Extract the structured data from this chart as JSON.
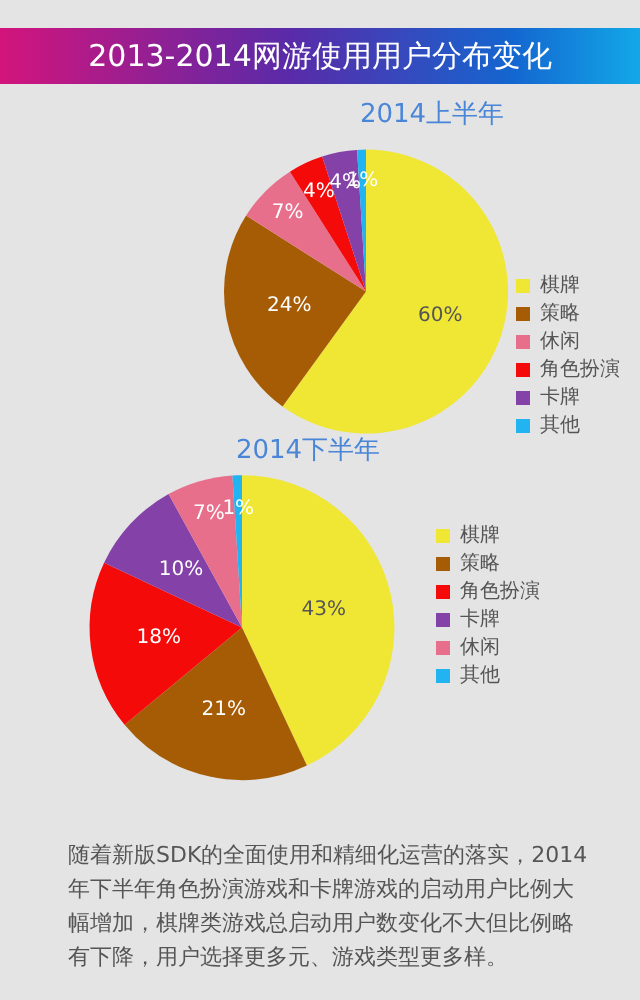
{
  "chart_data": [
    {
      "type": "other",
      "title": "2013-2014网游使用用户分布变化"
    },
    {
      "type": "pie",
      "title": "2014上半年",
      "categories": [
        "棋牌",
        "策略",
        "休闲",
        "角色扮演",
        "卡牌",
        "其他"
      ],
      "values": [
        60,
        24,
        7,
        4,
        4,
        1
      ],
      "colors": [
        "#f0e634",
        "#a65b05",
        "#e86f8c",
        "#f50a0a",
        "#8442a8",
        "#22b4f0"
      ],
      "value_labels": [
        "60%",
        "24%",
        "7%",
        "4%",
        "4%",
        "1%"
      ],
      "legend": "bottom right"
    },
    {
      "type": "pie",
      "title": "2014下半年",
      "categories": [
        "棋牌",
        "策略",
        "角色扮演",
        "卡牌",
        "休闲",
        "其他"
      ],
      "values": [
        43,
        21,
        18,
        10,
        7,
        1
      ],
      "colors": [
        "#f0e634",
        "#a65b05",
        "#f50a0a",
        "#8442a8",
        "#e86f8c",
        "#22b4f0"
      ],
      "value_labels": [
        "43%",
        "21%",
        "18%",
        "10%",
        "7%",
        "1%"
      ],
      "legend": "right"
    },
    {
      "type": "other",
      "annotations": [
        "随着新版SDK的全面使用和精细化运营的落实，2014年下半年角色扮演游戏和卡牌游戏的启动用户比例大幅增加，棋牌类游戏总启动用户数变化不大但比例略有下降，用户选择更多元、游戏类型更多样。"
      ]
    }
  ]
}
